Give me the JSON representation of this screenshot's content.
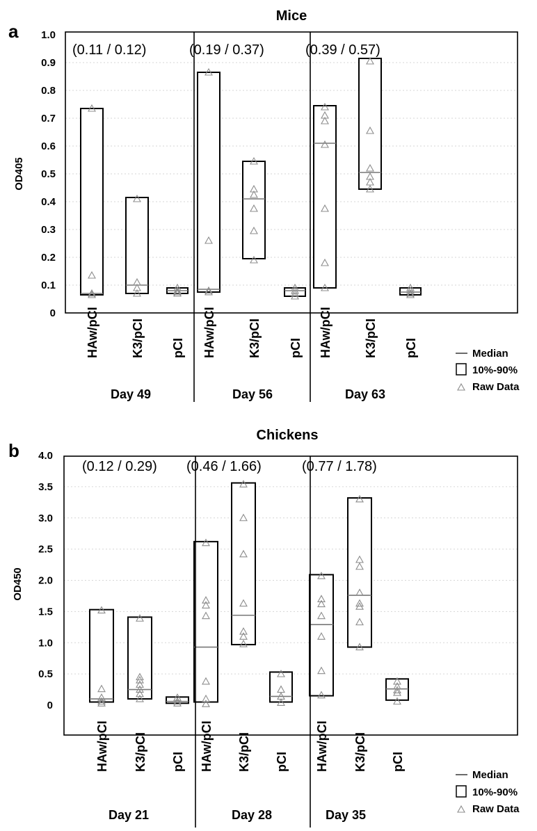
{
  "chart_data": [
    {
      "type": "box",
      "panel_label": "a",
      "title": "Mice",
      "ylabel": "OD405",
      "ylim": [
        0,
        1.0
      ],
      "yticks": [
        "0",
        "0.1",
        "0.2",
        "0.3",
        "0.4",
        "0.5",
        "0.6",
        "0.7",
        "0.8",
        "0.9",
        "1.0"
      ],
      "ytick_values": [
        0,
        0.1,
        0.2,
        0.3,
        0.4,
        0.5,
        0.6,
        0.7,
        0.8,
        0.9,
        1.0
      ],
      "grid": true,
      "groups": [
        {
          "label": "Day 49",
          "annotation": "(0.11 / 0.12)",
          "categories": [
            "HAw/pCI",
            "K3/pCI",
            "pCI"
          ],
          "boxes": [
            {
              "p10": 0.065,
              "p90": 0.735,
              "median": 0.07,
              "raw": [
                0.735,
                0.135,
                0.07,
                0.065
              ]
            },
            {
              "p10": 0.07,
              "p90": 0.415,
              "median": 0.1,
              "raw": [
                0.41,
                0.11,
                0.09,
                0.07
              ]
            },
            {
              "p10": 0.07,
              "p90": 0.09,
              "median": 0.08,
              "raw": [
                0.09,
                0.08,
                0.075,
                0.07
              ]
            }
          ]
        },
        {
          "label": "Day 56",
          "annotation": "(0.19 / 0.37)",
          "categories": [
            "HAw/pCI",
            "K3/pCI",
            "pCI"
          ],
          "boxes": [
            {
              "p10": 0.075,
              "p90": 0.865,
              "median": 0.085,
              "raw": [
                0.865,
                0.26,
                0.08,
                0.075
              ]
            },
            {
              "p10": 0.195,
              "p90": 0.545,
              "median": 0.41,
              "raw": [
                0.545,
                0.445,
                0.425,
                0.375,
                0.295,
                0.19
              ]
            },
            {
              "p10": 0.06,
              "p90": 0.09,
              "median": 0.08,
              "raw": [
                0.09,
                0.08,
                0.07,
                0.06
              ]
            }
          ]
        },
        {
          "label": "Day 63",
          "annotation": "(0.39 / 0.57)",
          "categories": [
            "HAw/pCI",
            "K3/pCI",
            "pCI"
          ],
          "boxes": [
            {
              "p10": 0.09,
              "p90": 0.745,
              "median": 0.61,
              "raw": [
                0.74,
                0.71,
                0.69,
                0.605,
                0.375,
                0.18,
                0.09
              ]
            },
            {
              "p10": 0.445,
              "p90": 0.915,
              "median": 0.505,
              "raw": [
                0.905,
                0.655,
                0.52,
                0.49,
                0.47,
                0.445
              ]
            },
            {
              "p10": 0.065,
              "p90": 0.09,
              "median": 0.075,
              "raw": [
                0.09,
                0.08,
                0.07,
                0.065
              ]
            }
          ]
        }
      ],
      "legend": {
        "median": "Median",
        "box": "10%-90%",
        "raw": "Raw Data",
        "placement": "bottom-right"
      }
    },
    {
      "type": "box",
      "panel_label": "b",
      "title": "Chickens",
      "ylabel": "OD450",
      "ylim": [
        -0.6,
        4.0
      ],
      "yticks": [
        "0",
        "0.5",
        "1.0",
        "1.5",
        "2.0",
        "2.5",
        "3.0",
        "3.5",
        "4.0"
      ],
      "ytick_values": [
        0,
        0.5,
        1.0,
        1.5,
        2.0,
        2.5,
        3.0,
        3.5,
        4.0
      ],
      "grid": true,
      "groups": [
        {
          "label": "Day 21",
          "annotation": "(0.12 / 0.29)",
          "categories": [
            "HAw/pCI",
            "K3/pCI",
            "pCI"
          ],
          "boxes": [
            {
              "p10": 0.05,
              "p90": 1.53,
              "median": 0.1,
              "raw": [
                1.52,
                0.26,
                0.12,
                0.06,
                0.03
              ]
            },
            {
              "p10": 0.1,
              "p90": 1.41,
              "median": 0.25,
              "raw": [
                1.39,
                0.45,
                0.4,
                0.33,
                0.25,
                0.18,
                0.1
              ]
            },
            {
              "p10": 0.03,
              "p90": 0.13,
              "median": 0.06,
              "raw": [
                0.12,
                0.06,
                0.03
              ]
            }
          ]
        },
        {
          "label": "Day 28",
          "annotation": "(0.46 / 1.66)",
          "categories": [
            "HAw/pCI",
            "K3/pCI",
            "pCI"
          ],
          "boxes": [
            {
              "p10": 0.05,
              "p90": 2.62,
              "median": 0.93,
              "raw": [
                2.6,
                1.68,
                1.6,
                1.43,
                0.38,
                0.1,
                0.02
              ]
            },
            {
              "p10": 0.97,
              "p90": 3.56,
              "median": 1.44,
              "raw": [
                3.54,
                3.0,
                2.42,
                1.63,
                1.18,
                1.1,
                0.98
              ]
            },
            {
              "p10": 0.05,
              "p90": 0.53,
              "median": 0.14,
              "raw": [
                0.5,
                0.25,
                0.14,
                0.04
              ]
            }
          ]
        },
        {
          "label": "Day 35",
          "annotation": "(0.77 / 1.78)",
          "categories": [
            "HAw/pCI",
            "K3/pCI",
            "pCI"
          ],
          "boxes": [
            {
              "p10": 0.15,
              "p90": 2.09,
              "median": 1.29,
              "raw": [
                2.07,
                1.7,
                1.62,
                1.43,
                1.1,
                0.55,
                0.16
              ]
            },
            {
              "p10": 0.93,
              "p90": 3.32,
              "median": 1.76,
              "raw": [
                3.3,
                2.33,
                2.22,
                1.8,
                1.63,
                1.58,
                1.33,
                0.93
              ]
            },
            {
              "p10": 0.08,
              "p90": 0.42,
              "median": 0.26,
              "raw": [
                0.38,
                0.3,
                0.24,
                0.2,
                0.06
              ]
            }
          ]
        }
      ],
      "legend": {
        "median": "Median",
        "box": "10%-90%",
        "raw": "Raw Data",
        "placement": "bottom-right"
      }
    }
  ]
}
